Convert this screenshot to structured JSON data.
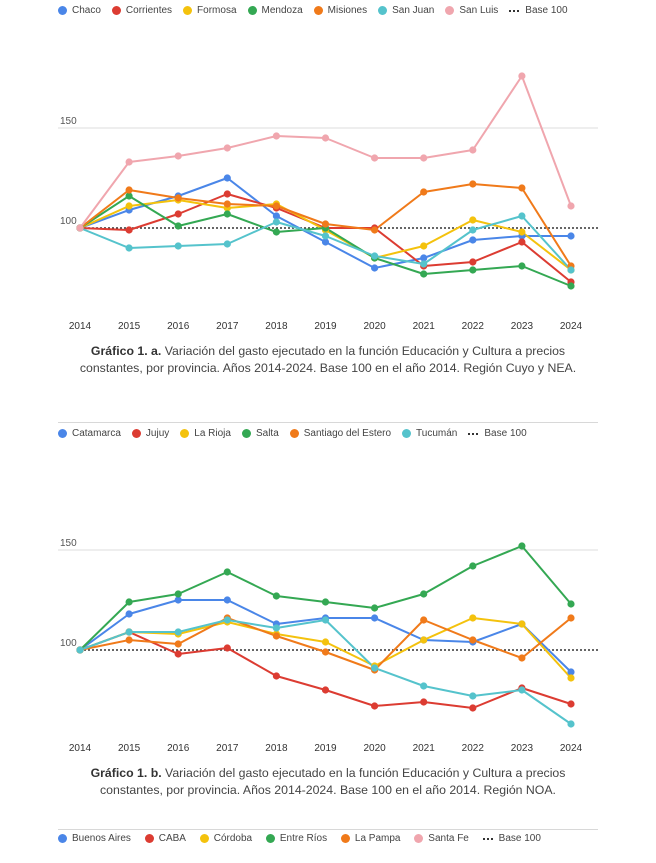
{
  "chart_data": [
    {
      "type": "line",
      "title": "Variación del gasto ejecutado en la función Educación y Cultura a precios constantes, por provincia. Años 2014-2024. Base 100 en el año 2014. Región Cuyo y NEA.",
      "x": [
        "2014",
        "2015",
        "2016",
        "2017",
        "2018",
        "2019",
        "2020",
        "2021",
        "2022",
        "2023",
        "2024"
      ],
      "ylim": [
        72,
        186
      ],
      "yticks": [
        {
          "value": 100,
          "label": "100"
        },
        {
          "value": 150,
          "label": "150"
        }
      ],
      "reference": {
        "name": "Base 100",
        "value": 100,
        "color": "#333333"
      },
      "series": [
        {
          "name": "Chaco",
          "color": "#4a86e8",
          "values": [
            100,
            109,
            116,
            125,
            106,
            93,
            80,
            85,
            94,
            96,
            96
          ]
        },
        {
          "name": "Corrientes",
          "color": "#dc3c32",
          "values": [
            100,
            99,
            107,
            117,
            110,
            100,
            100,
            81,
            83,
            93,
            73
          ]
        },
        {
          "name": "Formosa",
          "color": "#f4c20d",
          "values": [
            100,
            111,
            114,
            110,
            112,
            99,
            85,
            91,
            104,
            98,
            79
          ]
        },
        {
          "name": "Mendoza",
          "color": "#34a853",
          "values": [
            100,
            116,
            101,
            107,
            98,
            100,
            85,
            77,
            79,
            81,
            71
          ]
        },
        {
          "name": "Misiones",
          "color": "#f07a1a",
          "values": [
            100,
            119,
            115,
            112,
            111,
            102,
            99,
            118,
            122,
            120,
            81
          ]
        },
        {
          "name": "San Juan",
          "color": "#55c3cc",
          "values": [
            100,
            90,
            91,
            92,
            103,
            96,
            86,
            82,
            99,
            106,
            79
          ]
        },
        {
          "name": "San Luis",
          "color": "#f0a6ae",
          "values": [
            100,
            133,
            136,
            140,
            146,
            145,
            135,
            135,
            139,
            176,
            111
          ]
        }
      ]
    },
    {
      "type": "line",
      "title": "Variación del gasto ejecutado en la función Educación y Cultura a precios constantes, por provincia. Años 2014-2024. Base 100 en el año 2014. Región NOA.",
      "x": [
        "2014",
        "2015",
        "2016",
        "2017",
        "2018",
        "2019",
        "2020",
        "2021",
        "2022",
        "2023",
        "2024"
      ],
      "ylim": [
        60,
        160
      ],
      "yticks": [
        {
          "value": 100,
          "label": "100"
        },
        {
          "value": 150,
          "label": "150"
        }
      ],
      "reference": {
        "name": "Base 100",
        "value": 100,
        "color": "#333333"
      },
      "series": [
        {
          "name": "Catamarca",
          "color": "#4a86e8",
          "values": [
            100,
            118,
            125,
            125,
            113,
            116,
            116,
            105,
            104,
            113,
            89
          ]
        },
        {
          "name": "Jujuy",
          "color": "#dc3c32",
          "values": [
            100,
            109,
            98,
            101,
            87,
            80,
            72,
            74,
            71,
            81,
            73
          ]
        },
        {
          "name": "La Rioja",
          "color": "#f4c20d",
          "values": [
            100,
            109,
            108,
            114,
            108,
            104,
            92,
            105,
            116,
            113,
            86
          ]
        },
        {
          "name": "Salta",
          "color": "#34a853",
          "values": [
            100,
            124,
            128,
            139,
            127,
            124,
            121,
            128,
            142,
            152,
            123
          ]
        },
        {
          "name": "Santiago del Estero",
          "color": "#f07a1a",
          "values": [
            100,
            105,
            103,
            116,
            107,
            99,
            90,
            115,
            105,
            96,
            116
          ]
        },
        {
          "name": "Tucumán",
          "color": "#55c3cc",
          "values": [
            100,
            109,
            109,
            115,
            111,
            115,
            91,
            82,
            77,
            80,
            63
          ]
        }
      ]
    }
  ],
  "captions": [
    {
      "label": "Gráfico 1. a.",
      "text": " Variación del gasto ejecutado en la función Educación y Cultura a precios constantes, por provincia. Años 2014-2024. Base 100 en el año 2014. Región Cuyo y NEA."
    },
    {
      "label": "Gráfico 1. b.",
      "text": " Variación del gasto ejecutado en la función Educación y Cultura a precios constantes, por provincia. Años 2014-2024. Base 100 en el año 2014. Región NOA."
    }
  ],
  "bottom_legend": {
    "items": [
      {
        "name": "Buenos Aires",
        "color": "#4a86e8"
      },
      {
        "name": "CABA",
        "color": "#dc3c32"
      },
      {
        "name": "Córdoba",
        "color": "#f4c20d"
      },
      {
        "name": "Entre Ríos",
        "color": "#34a853"
      },
      {
        "name": "La Pampa",
        "color": "#f07a1a"
      },
      {
        "name": "Santa Fe",
        "color": "#f0a6ae"
      }
    ],
    "reference_label": "Base 100"
  }
}
